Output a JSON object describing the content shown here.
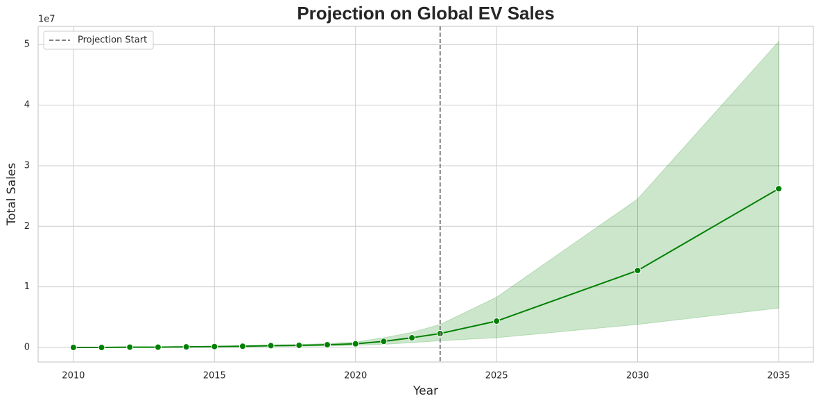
{
  "chart_data": {
    "type": "line",
    "title": "Projection on Global EV Sales",
    "x_label": "Year",
    "y_label": "Total Sales",
    "y_offset_label": "1e7",
    "x": [
      2010,
      2011,
      2012,
      2013,
      2014,
      2015,
      2016,
      2017,
      2018,
      2019,
      2020,
      2021,
      2022,
      2023,
      2025,
      2030,
      2035
    ],
    "series": [
      {
        "name": "Total Sales",
        "color": "#008000",
        "values": [
          0.0,
          0.0,
          0.005,
          0.005,
          0.01,
          0.015,
          0.02,
          0.03,
          0.035,
          0.045,
          0.06,
          0.1,
          0.16,
          0.23,
          0.435,
          1.27,
          2.62
        ],
        "lower": [
          0,
          0,
          0,
          0,
          0.005,
          0.01,
          0.01,
          0.015,
          0.02,
          0.025,
          0.035,
          0.05,
          0.08,
          0.11,
          0.16,
          0.38,
          0.65
        ],
        "upper": [
          0.001,
          0.005,
          0.01,
          0.01,
          0.015,
          0.02,
          0.03,
          0.04,
          0.05,
          0.065,
          0.09,
          0.16,
          0.25,
          0.38,
          0.83,
          2.45,
          5.05
        ]
      }
    ],
    "vline": {
      "x": 2023,
      "name": "Projection Start",
      "color": "#808080"
    },
    "xlim": [
      2008.75,
      2036.23
    ],
    "ylim": [
      -0.24,
      5.3
    ],
    "xticks": [
      2010,
      2015,
      2020,
      2025,
      2030,
      2035
    ],
    "yticks": [
      0,
      1,
      2,
      3,
      4,
      5
    ],
    "grid": true,
    "legend": "upper left"
  }
}
